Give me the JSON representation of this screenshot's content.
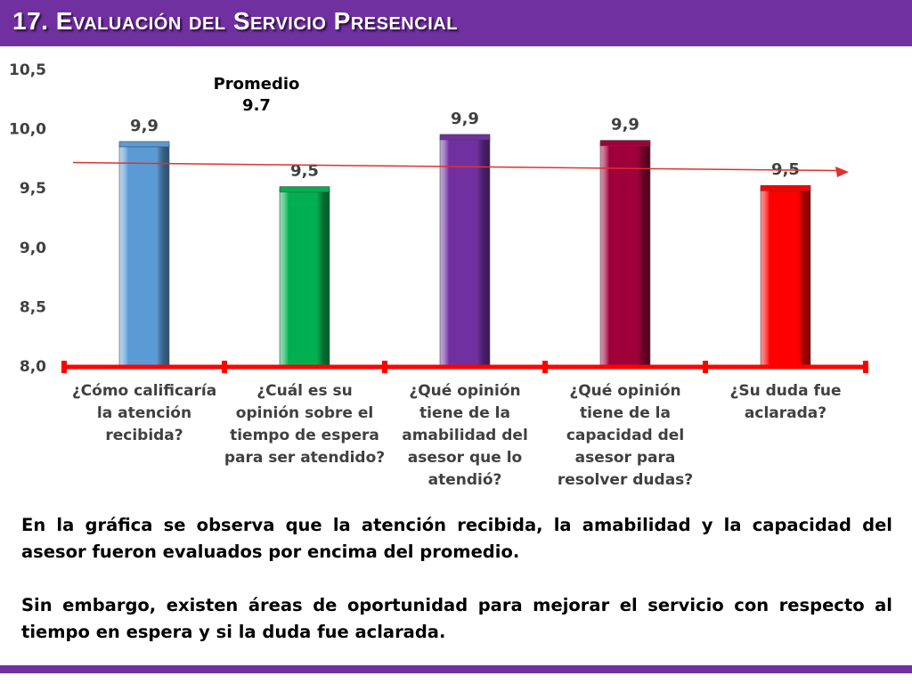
{
  "title": "17. Evaluación del Servicio Presencial",
  "colors": {
    "accent": "#7030a0",
    "axis": "#ff0000",
    "average_line": "#e03030"
  },
  "chart_data": {
    "type": "bar",
    "categories": [
      [
        "¿Cómo calificaría",
        "la atención",
        "recibida?"
      ],
      [
        "¿Cuál es su",
        "opinión sobre el",
        "tiempo de espera",
        "para ser atendido?"
      ],
      [
        "¿Qué opinión",
        "tiene de la",
        "amabilidad del",
        "asesor que lo",
        "atendió?"
      ],
      [
        "¿Qué opinión",
        "tiene de la",
        "capacidad del",
        "asesor para",
        "resolver dudas?"
      ],
      [
        "¿Su duda fue",
        "aclarada?"
      ]
    ],
    "values": [
      9.87,
      9.49,
      9.93,
      9.88,
      9.5
    ],
    "data_labels": [
      "9,9",
      "9,5",
      "9,9",
      "9,9",
      "9,5"
    ],
    "bar_colors": [
      "#5b9bd5",
      "#00b050",
      "#7030a0",
      "#a0003a",
      "#ff0000"
    ],
    "ylim": [
      8.0,
      10.5
    ],
    "yticks": [
      8.0,
      8.5,
      9.0,
      9.5,
      10.0,
      10.5
    ],
    "ytick_labels": [
      "8,0",
      "8,5",
      "9,0",
      "9,5",
      "10,0",
      "10,5"
    ],
    "average": {
      "label_line1": "Promedio",
      "label_line2": "9.7"
    },
    "grid": false,
    "legend": "none"
  },
  "notes": [
    "En la gráfica se observa que la atención recibida, la amabilidad y la capacidad del asesor fueron evaluados por encima del promedio.",
    "Sin embargo, existen áreas de oportunidad para mejorar el servicio con respecto al tiempo en espera y si la duda fue aclarada."
  ]
}
